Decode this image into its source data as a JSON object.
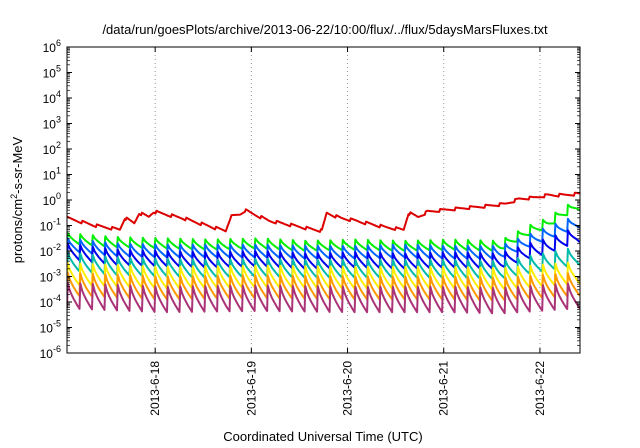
{
  "chart_data": {
    "type": "line",
    "title": "/data/run/goesPlots/archive/2013-06-22/10:00/flux/../flux/5daysMarsFluxes.txt",
    "xlabel": "Coordinated Universal Time (UTC)",
    "ylabel": {
      "prefix": "protons/cm",
      "exp": "2",
      "suffix": "-s-sr-MeV"
    },
    "y_scale": "log",
    "ylim": [
      "1e-6",
      "1e6"
    ],
    "y_ticks": [
      {
        "base": "10",
        "exp": "6"
      },
      {
        "base": "10",
        "exp": "5"
      },
      {
        "base": "10",
        "exp": "4"
      },
      {
        "base": "10",
        "exp": "3"
      },
      {
        "base": "10",
        "exp": "2"
      },
      {
        "base": "10",
        "exp": "1"
      },
      {
        "base": "10",
        "exp": "0"
      },
      {
        "base": "10",
        "exp": "-1"
      },
      {
        "base": "10",
        "exp": "-2"
      },
      {
        "base": "10",
        "exp": "-3"
      },
      {
        "base": "10",
        "exp": "-4"
      },
      {
        "base": "10",
        "exp": "-5"
      },
      {
        "base": "10",
        "exp": "-6"
      }
    ],
    "x_range": [
      "2013-06-17 02:00",
      "2013-06-22 10:00"
    ],
    "x_ticks": [
      "2013-6-18",
      "2013-6-19",
      "2013-6-20",
      "2013-6-21",
      "2013-6-22"
    ],
    "grid": {
      "x": true,
      "y": false
    },
    "series": [
      {
        "color": "#dd0000",
        "points": [
          [
            0,
            -0.65
          ],
          [
            0.3,
            -0.95
          ],
          [
            0.55,
            -1.1
          ],
          [
            0.6,
            -0.65
          ],
          [
            0.7,
            -0.85
          ],
          [
            0.75,
            -0.45
          ],
          [
            0.85,
            -0.6
          ],
          [
            0.9,
            -0.4
          ],
          [
            1.2,
            -0.65
          ],
          [
            1.55,
            -1.05
          ],
          [
            1.65,
            -1.15
          ],
          [
            1.7,
            -0.6
          ],
          [
            1.8,
            -0.5
          ],
          [
            1.85,
            -0.35
          ],
          [
            2.1,
            -0.75
          ],
          [
            2.5,
            -1.05
          ],
          [
            2.65,
            -1.15
          ],
          [
            2.7,
            -0.45
          ],
          [
            2.85,
            -0.65
          ],
          [
            3.0,
            -0.75
          ],
          [
            3.3,
            -1.0
          ],
          [
            3.5,
            -1.1
          ],
          [
            3.55,
            -0.45
          ],
          [
            3.65,
            -0.6
          ],
          [
            3.75,
            -0.4
          ],
          [
            4.0,
            -0.3
          ],
          [
            4.3,
            -0.2
          ],
          [
            4.55,
            -0.1
          ],
          [
            4.7,
            0.1
          ],
          [
            4.85,
            0.15
          ],
          [
            5.0,
            0.25
          ],
          [
            5.15,
            0.25
          ],
          [
            5.3,
            0.3
          ]
        ],
        "amp": 0.3,
        "cycle": 0.155
      },
      {
        "color": "#00ee00",
        "points": [
          [
            0,
            -1.5
          ],
          [
            0.5,
            -1.65
          ],
          [
            1.0,
            -1.7
          ],
          [
            1.5,
            -1.75
          ],
          [
            2.0,
            -1.7
          ],
          [
            2.5,
            -1.8
          ],
          [
            3.0,
            -1.75
          ],
          [
            3.5,
            -1.8
          ],
          [
            4.0,
            -1.75
          ],
          [
            4.5,
            -1.8
          ],
          [
            4.8,
            -1.2
          ],
          [
            5.0,
            -0.9
          ],
          [
            5.15,
            -0.5
          ],
          [
            5.3,
            -0.2
          ]
        ],
        "amp": 0.4,
        "cycle": 0.13
      },
      {
        "color": "#0066ff",
        "points": [
          [
            0,
            -1.75
          ],
          [
            0.5,
            -1.95
          ],
          [
            1.0,
            -2.0
          ],
          [
            1.5,
            -2.0
          ],
          [
            2.0,
            -2.0
          ],
          [
            2.5,
            -2.05
          ],
          [
            3.0,
            -2.05
          ],
          [
            3.5,
            -2.0
          ],
          [
            4.0,
            -2.05
          ],
          [
            4.5,
            -2.05
          ],
          [
            4.8,
            -1.6
          ],
          [
            5.0,
            -1.3
          ],
          [
            5.3,
            -0.85
          ]
        ],
        "amp": 0.5,
        "cycle": 0.13
      },
      {
        "color": "#0000ee",
        "points": [
          [
            0,
            -2.0
          ],
          [
            0.5,
            -2.25
          ],
          [
            1.0,
            -2.3
          ],
          [
            1.5,
            -2.35
          ],
          [
            2.0,
            -2.3
          ],
          [
            2.5,
            -2.4
          ],
          [
            3.0,
            -2.35
          ],
          [
            3.5,
            -2.4
          ],
          [
            4.0,
            -2.35
          ],
          [
            4.5,
            -2.4
          ],
          [
            4.8,
            -2.0
          ],
          [
            5.0,
            -1.8
          ],
          [
            5.3,
            -1.35
          ]
        ],
        "amp": 0.6,
        "cycle": 0.13
      },
      {
        "color": "#00bbaa",
        "points": [
          [
            0,
            -2.4
          ],
          [
            0.5,
            -2.6
          ],
          [
            1.0,
            -2.65
          ],
          [
            1.5,
            -2.7
          ],
          [
            2.0,
            -2.65
          ],
          [
            2.5,
            -2.7
          ],
          [
            3.0,
            -2.7
          ],
          [
            3.5,
            -2.7
          ],
          [
            4.0,
            -2.7
          ],
          [
            4.5,
            -2.75
          ],
          [
            4.8,
            -2.55
          ],
          [
            5.3,
            -2.2
          ]
        ],
        "amp": 0.7,
        "cycle": 0.13
      },
      {
        "color": "#ffee00",
        "points": [
          [
            0,
            -2.9
          ],
          [
            1.0,
            -3.05
          ],
          [
            2.0,
            -3.0
          ],
          [
            3.0,
            -3.05
          ],
          [
            4.0,
            -3.05
          ],
          [
            4.5,
            -3.1
          ],
          [
            5.3,
            -2.85
          ]
        ],
        "amp": 0.85,
        "cycle": 0.13
      },
      {
        "color": "#ff9900",
        "points": [
          [
            0,
            -3.3
          ],
          [
            1.0,
            -3.45
          ],
          [
            2.0,
            -3.4
          ],
          [
            3.0,
            -3.45
          ],
          [
            4.0,
            -3.45
          ],
          [
            4.5,
            -3.5
          ],
          [
            5.3,
            -3.3
          ]
        ],
        "amp": 0.9,
        "cycle": 0.13
      },
      {
        "color": "#aa3377",
        "points": [
          [
            0,
            -3.75
          ],
          [
            1.0,
            -3.9
          ],
          [
            2.0,
            -3.85
          ],
          [
            3.0,
            -3.9
          ],
          [
            4.0,
            -3.9
          ],
          [
            4.5,
            -3.95
          ],
          [
            5.3,
            -3.75
          ]
        ],
        "amp": 1.0,
        "cycle": 0.13
      }
    ]
  }
}
